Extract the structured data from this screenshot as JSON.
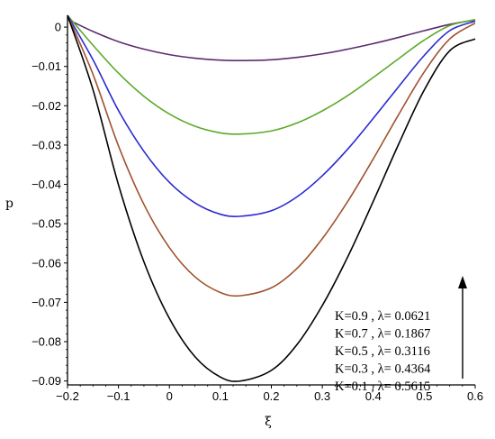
{
  "chart_data": {
    "type": "line",
    "title": "",
    "xlabel": "ξ",
    "ylabel": "p",
    "xlim": [
      -0.2,
      0.6
    ],
    "ylim": [
      -0.091,
      0.003
    ],
    "grid": false,
    "legend_placement": "bottom-right",
    "x_ticks": [
      -0.2,
      -0.1,
      0,
      0.1,
      0.2,
      0.3,
      0.4,
      0.5,
      0.6
    ],
    "x_tick_labels": [
      "−0.2",
      "−0.1",
      "0",
      "0.1",
      "0.2",
      "0.3",
      "0.4",
      "0.5",
      "0.6"
    ],
    "y_ticks": [
      0,
      -0.01,
      -0.02,
      -0.03,
      -0.04,
      -0.05,
      -0.06,
      -0.07,
      -0.08,
      -0.09
    ],
    "y_tick_labels": [
      "0",
      "−0.01",
      "−0.02",
      "−0.03",
      "−0.04",
      "−0.05",
      "−0.06",
      "−0.07",
      "−0.08",
      "−0.09"
    ],
    "legend_arrow": "up",
    "series": [
      {
        "name": "K=0.9 , λ=  0.0621",
        "color": "#5b2c6f",
        "x": [
          -0.2,
          -0.15,
          -0.1,
          -0.05,
          0,
          0.05,
          0.1,
          0.14,
          0.2,
          0.25,
          0.3,
          0.35,
          0.4,
          0.45,
          0.5,
          0.55,
          0.6
        ],
        "y": [
          0.002,
          -0.0011,
          -0.0037,
          -0.0056,
          -0.007,
          -0.0079,
          -0.0084,
          -0.0085,
          -0.0083,
          -0.0077,
          -0.0068,
          -0.0056,
          -0.0042,
          -0.0026,
          -0.0009,
          0.0007,
          0.0018
        ]
      },
      {
        "name": "K=0.7 , λ= 0.1867",
        "color": "#5aaa28",
        "x": [
          -0.2,
          -0.15,
          -0.1,
          -0.05,
          0,
          0.05,
          0.1,
          0.14,
          0.2,
          0.25,
          0.3,
          0.35,
          0.4,
          0.45,
          0.5,
          0.55,
          0.6
        ],
        "y": [
          0.003,
          -0.0046,
          -0.0117,
          -0.0176,
          -0.0221,
          -0.0252,
          -0.0269,
          -0.0272,
          -0.0264,
          -0.0244,
          -0.0213,
          -0.0174,
          -0.0128,
          -0.008,
          -0.0033,
          0.0004,
          0.0019
        ]
      },
      {
        "name": "K=0.5 , λ=  0.3116",
        "color": "#2b2bd0",
        "x": [
          -0.2,
          -0.15,
          -0.1,
          -0.05,
          0,
          0.05,
          0.1,
          0.14,
          0.2,
          0.25,
          0.3,
          0.35,
          0.4,
          0.45,
          0.5,
          0.55,
          0.6
        ],
        "y": [
          0.003,
          -0.0083,
          -0.0212,
          -0.0316,
          -0.0395,
          -0.0447,
          -0.0476,
          -0.0481,
          -0.0467,
          -0.0432,
          -0.0378,
          -0.031,
          -0.0232,
          -0.0151,
          -0.0072,
          -0.0009,
          0.0015
        ]
      },
      {
        "name": "K=0.3 , λ= 0.4364",
        "color": "#a0522d",
        "x": [
          -0.2,
          -0.15,
          -0.1,
          -0.05,
          0,
          0.05,
          0.1,
          0.14,
          0.2,
          0.25,
          0.3,
          0.35,
          0.4,
          0.45,
          0.5,
          0.55,
          0.6
        ],
        "y": [
          0.003,
          -0.012,
          -0.0302,
          -0.0451,
          -0.0561,
          -0.0635,
          -0.0675,
          -0.0683,
          -0.0663,
          -0.0614,
          -0.0538,
          -0.0443,
          -0.0335,
          -0.0222,
          -0.0114,
          -0.003,
          0.001
        ]
      },
      {
        "name": "K=0.1 , λ= 0.5615",
        "color": "#000000",
        "x": [
          -0.2,
          -0.15,
          -0.1,
          -0.05,
          0,
          0.05,
          0.1,
          0.14,
          0.2,
          0.25,
          0.3,
          0.35,
          0.4,
          0.45,
          0.5,
          0.55,
          0.6
        ],
        "y": [
          0.003,
          -0.0159,
          -0.0401,
          -0.0597,
          -0.0741,
          -0.0838,
          -0.089,
          -0.09,
          -0.0873,
          -0.0808,
          -0.0708,
          -0.0584,
          -0.0443,
          -0.0297,
          -0.016,
          -0.006,
          -0.003
        ]
      }
    ]
  }
}
